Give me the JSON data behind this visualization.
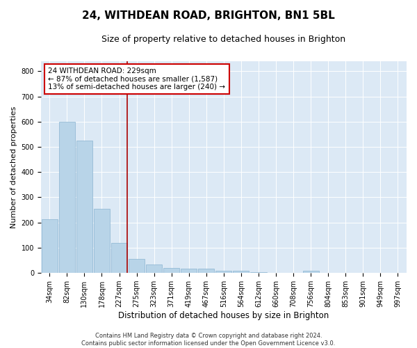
{
  "title": "24, WITHDEAN ROAD, BRIGHTON, BN1 5BL",
  "subtitle": "Size of property relative to detached houses in Brighton",
  "xlabel": "Distribution of detached houses by size in Brighton",
  "ylabel": "Number of detached properties",
  "categories": [
    "34sqm",
    "82sqm",
    "130sqm",
    "178sqm",
    "227sqm",
    "275sqm",
    "323sqm",
    "371sqm",
    "419sqm",
    "467sqm",
    "516sqm",
    "564sqm",
    "612sqm",
    "660sqm",
    "708sqm",
    "756sqm",
    "804sqm",
    "853sqm",
    "901sqm",
    "949sqm",
    "997sqm"
  ],
  "values": [
    212,
    600,
    525,
    255,
    118,
    55,
    33,
    20,
    17,
    17,
    10,
    10,
    2,
    0,
    0,
    10,
    0,
    0,
    0,
    0,
    0
  ],
  "bar_color": "#b8d4e8",
  "bar_edge_color": "#8ab4d0",
  "highlight_index": 4,
  "highlight_color": "#aa0000",
  "annotation_line1": "24 WITHDEAN ROAD: 229sqm",
  "annotation_line2": "← 87% of detached houses are smaller (1,587)",
  "annotation_line3": "13% of semi-detached houses are larger (240) →",
  "annotation_box_color": "#ffffff",
  "annotation_border_color": "#cc0000",
  "ylim": [
    0,
    840
  ],
  "yticks": [
    0,
    100,
    200,
    300,
    400,
    500,
    600,
    700,
    800
  ],
  "background_color": "#dce9f5",
  "footer_line1": "Contains HM Land Registry data © Crown copyright and database right 2024.",
  "footer_line2": "Contains public sector information licensed under the Open Government Licence v3.0.",
  "title_fontsize": 11,
  "subtitle_fontsize": 9,
  "xlabel_fontsize": 8.5,
  "ylabel_fontsize": 8,
  "tick_fontsize": 7,
  "annot_fontsize": 7.5,
  "footer_fontsize": 6
}
